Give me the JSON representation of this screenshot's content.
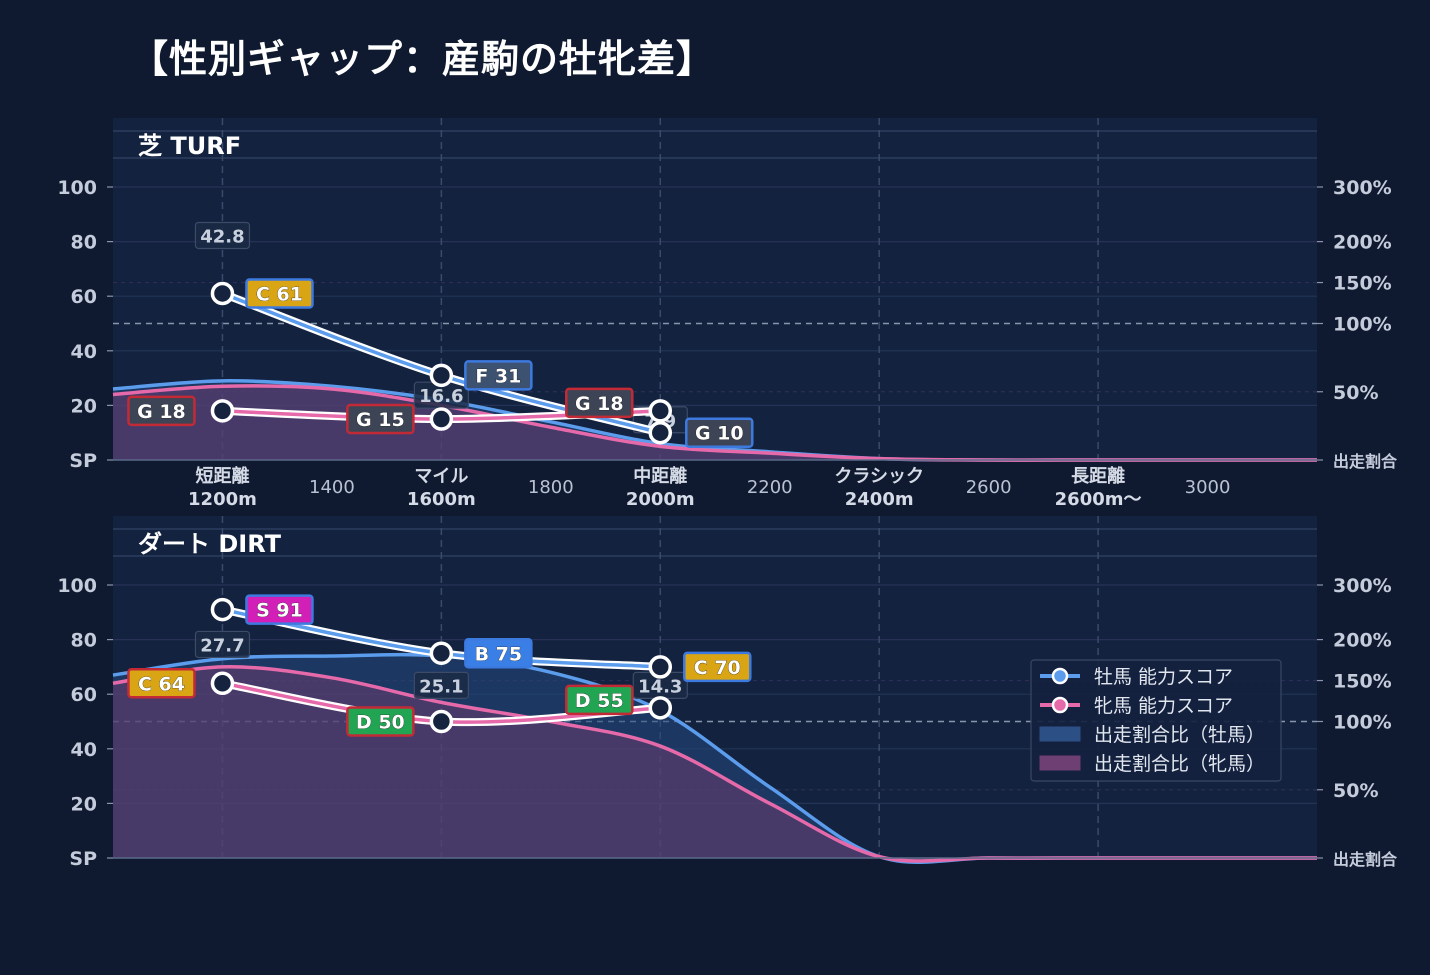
{
  "title": "【性別ギャップ：産駒の牡牝差】",
  "legend": {
    "items": [
      {
        "label": "牡馬 能力スコア",
        "kind": "line",
        "color": "#5b9cec"
      },
      {
        "label": "牝馬 能力スコア",
        "kind": "line",
        "color": "#e66aaa"
      },
      {
        "label": "出走割合比（牡馬）",
        "kind": "area",
        "color": "#2c4f86"
      },
      {
        "label": "出走割合比（牝馬）",
        "kind": "area",
        "color": "#6e3f72"
      }
    ]
  },
  "colors": {
    "background": "#0f1a30",
    "panel": "#13223f",
    "male": "#5b9cec",
    "female": "#e66aaa",
    "grade": {
      "S": "#d21fb8",
      "A": "#e34a3a",
      "B": "#3a7fe6",
      "C": "#d9a514",
      "D": "#22a552",
      "F": "#3d5170",
      "G": "#3d4455"
    }
  },
  "chart_data": [
    {
      "type": "line",
      "title": "芝 TURF",
      "x_categories": [
        {
          "x": 1200,
          "label": "短距離",
          "sublabel": "1200m"
        },
        {
          "x": 1400,
          "label": "1400"
        },
        {
          "x": 1600,
          "label": "マイル",
          "sublabel": "1600m"
        },
        {
          "x": 1800,
          "label": "1800"
        },
        {
          "x": 2000,
          "label": "中距離",
          "sublabel": "2000m"
        },
        {
          "x": 2200,
          "label": "2200"
        },
        {
          "x": 2400,
          "label": "クラシック",
          "sublabel": "2400m"
        },
        {
          "x": 2600,
          "label": "2600"
        },
        {
          "x": 2800,
          "label": "長距離",
          "sublabel": "2600m〜"
        },
        {
          "x": 3000,
          "label": "3000"
        }
      ],
      "xlim": [
        1000,
        3200
      ],
      "y_left": {
        "ticks": [
          0,
          20,
          40,
          60,
          80,
          100
        ],
        "labels": [
          "SP",
          "20",
          "40",
          "60",
          "80",
          "100"
        ],
        "ylim": [
          0,
          100
        ]
      },
      "y_right": {
        "ticks": [
          0,
          50,
          100,
          150,
          200,
          300
        ],
        "labels": [
          "出走割合",
          "50%",
          "100%",
          "150%",
          "200%",
          "300%"
        ]
      },
      "series": [
        {
          "name": "牡馬 能力スコア",
          "points": [
            {
              "x": 1200,
              "y": 61,
              "grade": "C"
            },
            {
              "x": 1600,
              "y": 31,
              "grade": "F"
            },
            {
              "x": 2000,
              "y": 10,
              "grade": "G"
            }
          ]
        },
        {
          "name": "牝馬 能力スコア",
          "points": [
            {
              "x": 1200,
              "y": 18,
              "grade": "G"
            },
            {
              "x": 1600,
              "y": 15,
              "grade": "G"
            },
            {
              "x": 2000,
              "y": 18,
              "grade": "G"
            }
          ]
        }
      ],
      "gap_labels": [
        {
          "x": 1200,
          "value": "42.8"
        },
        {
          "x": 1600,
          "value": "16.6"
        },
        {
          "x": 2000,
          "value": "7.9"
        }
      ],
      "area_male": [
        [
          1000,
          26
        ],
        [
          1200,
          29
        ],
        [
          1400,
          27
        ],
        [
          1600,
          22
        ],
        [
          1800,
          14
        ],
        [
          2000,
          6
        ],
        [
          2200,
          3
        ],
        [
          2400,
          0.5
        ],
        [
          2600,
          0
        ],
        [
          2800,
          0
        ],
        [
          3000,
          0
        ],
        [
          3200,
          0
        ]
      ],
      "area_female": [
        [
          1000,
          24
        ],
        [
          1200,
          27
        ],
        [
          1400,
          26
        ],
        [
          1600,
          20
        ],
        [
          1800,
          12
        ],
        [
          2000,
          5
        ],
        [
          2200,
          2.5
        ],
        [
          2400,
          0.5
        ],
        [
          2600,
          0
        ],
        [
          2800,
          0
        ],
        [
          3000,
          0
        ],
        [
          3200,
          0
        ]
      ]
    },
    {
      "type": "line",
      "title": "ダート DIRT",
      "x_categories": [
        {
          "x": 1200
        },
        {
          "x": 1400
        },
        {
          "x": 1600
        },
        {
          "x": 1800
        },
        {
          "x": 2000
        },
        {
          "x": 2200
        },
        {
          "x": 2400
        },
        {
          "x": 2600
        },
        {
          "x": 2800
        },
        {
          "x": 3000
        }
      ],
      "xlim": [
        1000,
        3200
      ],
      "y_left": {
        "ticks": [
          0,
          20,
          40,
          60,
          80,
          100
        ],
        "labels": [
          "SP",
          "20",
          "40",
          "60",
          "80",
          "100"
        ],
        "ylim": [
          0,
          100
        ]
      },
      "y_right": {
        "ticks": [
          0,
          50,
          100,
          150,
          200,
          300
        ],
        "labels": [
          "出走割合",
          "50%",
          "100%",
          "150%",
          "200%",
          "300%"
        ]
      },
      "series": [
        {
          "name": "牡馬 能力スコア",
          "points": [
            {
              "x": 1200,
              "y": 91,
              "grade": "S"
            },
            {
              "x": 1600,
              "y": 75,
              "grade": "B"
            },
            {
              "x": 2000,
              "y": 70,
              "grade": "C"
            }
          ]
        },
        {
          "name": "牝馬 能力スコア",
          "points": [
            {
              "x": 1200,
              "y": 64,
              "grade": "C"
            },
            {
              "x": 1600,
              "y": 50,
              "grade": "D"
            },
            {
              "x": 2000,
              "y": 55,
              "grade": "D"
            }
          ]
        }
      ],
      "gap_labels": [
        {
          "x": 1200,
          "value": "27.7"
        },
        {
          "x": 1600,
          "value": "25.1"
        },
        {
          "x": 2000,
          "value": "14.3"
        }
      ],
      "area_male": [
        [
          1000,
          67
        ],
        [
          1200,
          73
        ],
        [
          1400,
          74
        ],
        [
          1600,
          74
        ],
        [
          1800,
          68
        ],
        [
          2000,
          54
        ],
        [
          2200,
          26
        ],
        [
          2400,
          0.5
        ],
        [
          2600,
          0
        ],
        [
          2800,
          0
        ],
        [
          3000,
          0
        ],
        [
          3200,
          0
        ]
      ],
      "area_female": [
        [
          1000,
          64
        ],
        [
          1200,
          70
        ],
        [
          1400,
          66
        ],
        [
          1600,
          57
        ],
        [
          1800,
          50
        ],
        [
          2000,
          41
        ],
        [
          2200,
          20
        ],
        [
          2400,
          0.5
        ],
        [
          2600,
          0
        ],
        [
          2800,
          0
        ],
        [
          3000,
          0
        ],
        [
          3200,
          0
        ]
      ]
    }
  ]
}
